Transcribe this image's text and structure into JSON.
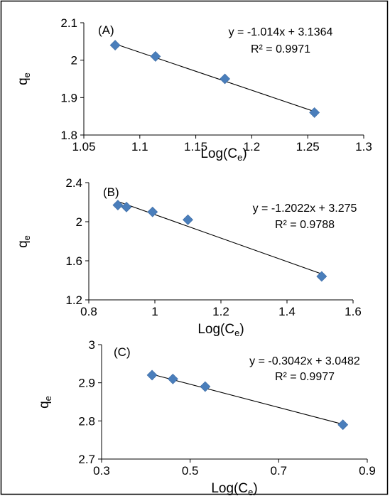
{
  "chart_data": [
    {
      "type": "scatter",
      "panel_label": "(A)",
      "xlabel": "Log(C",
      "xlabel_sub": "e",
      "xlabel_end": ")",
      "ylabel": "q",
      "ylabel_sub": "e",
      "xlim": [
        1.05,
        1.3
      ],
      "ylim": [
        1.8,
        2.1
      ],
      "x_ticks": [
        1.05,
        1.1,
        1.15,
        1.2,
        1.25,
        1.3
      ],
      "x_tick_labels": [
        "1.05",
        "1.1",
        "1.15",
        "1.2",
        "1.25",
        "1.3"
      ],
      "y_ticks": [
        1.8,
        1.9,
        2.0,
        2.1
      ],
      "y_tick_labels": [
        "1.8",
        "1.9",
        "2",
        "2.1"
      ],
      "series": [
        {
          "x": [
            1.078,
            1.114,
            1.176,
            1.256
          ],
          "y": [
            2.04,
            2.01,
            1.95,
            1.86
          ]
        }
      ],
      "trendline": {
        "slope": -1.014,
        "intercept": 3.1364,
        "x_range": [
          1.078,
          1.256
        ]
      },
      "equation": "y = -1.014x + 3.1364",
      "r_squared": "R² = 0.9971",
      "marker_color": "#4a7ebb",
      "grid": false
    },
    {
      "type": "scatter",
      "panel_label": "(B)",
      "xlabel": "Log(C",
      "xlabel_sub": "e",
      "xlabel_end": ")",
      "ylabel": "q",
      "ylabel_sub": "e",
      "xlim": [
        0.8,
        1.6
      ],
      "ylim": [
        1.2,
        2.4
      ],
      "x_ticks": [
        0.8,
        1.0,
        1.2,
        1.4,
        1.6
      ],
      "x_tick_labels": [
        "0.8",
        "1",
        "1.2",
        "1.4",
        "1.6"
      ],
      "y_ticks": [
        1.2,
        1.6,
        2.0,
        2.4
      ],
      "y_tick_labels": [
        "1.2",
        "1.6",
        "2",
        "2.4"
      ],
      "series": [
        {
          "x": [
            0.888,
            0.914,
            0.993,
            1.1,
            1.505
          ],
          "y": [
            2.17,
            2.15,
            2.1,
            2.02,
            1.44
          ]
        }
      ],
      "trendline": {
        "slope": -1.2022,
        "intercept": 3.275,
        "x_range": [
          0.888,
          1.505
        ]
      },
      "equation": "y = -1.2022x + 3.275",
      "r_squared": "R² = 0.9788",
      "marker_color": "#4a7ebb",
      "grid": false
    },
    {
      "type": "scatter",
      "panel_label": "(C)",
      "xlabel": "Log(C",
      "xlabel_sub": "e",
      "xlabel_end": ")",
      "ylabel": "q",
      "ylabel_sub": "e",
      "xlim": [
        0.3,
        0.9
      ],
      "ylim": [
        2.7,
        3.0
      ],
      "x_ticks": [
        0.3,
        0.5,
        0.7,
        0.9
      ],
      "x_tick_labels": [
        "0.3",
        "0.5",
        "0.7",
        "0.9"
      ],
      "y_ticks": [
        2.7,
        2.8,
        2.9,
        3.0
      ],
      "y_tick_labels": [
        "2.7",
        "2.8",
        "2.9",
        "3"
      ],
      "series": [
        {
          "x": [
            0.414,
            0.461,
            0.534,
            0.845
          ],
          "y": [
            2.92,
            2.91,
            2.89,
            2.79
          ]
        }
      ],
      "trendline": {
        "slope": -0.3042,
        "intercept": 3.0482,
        "x_range": [
          0.414,
          0.845
        ]
      },
      "equation": "y = -0.3042x + 3.0482",
      "r_squared": "R² = 0.9977",
      "marker_color": "#4a7ebb",
      "grid": false
    }
  ]
}
